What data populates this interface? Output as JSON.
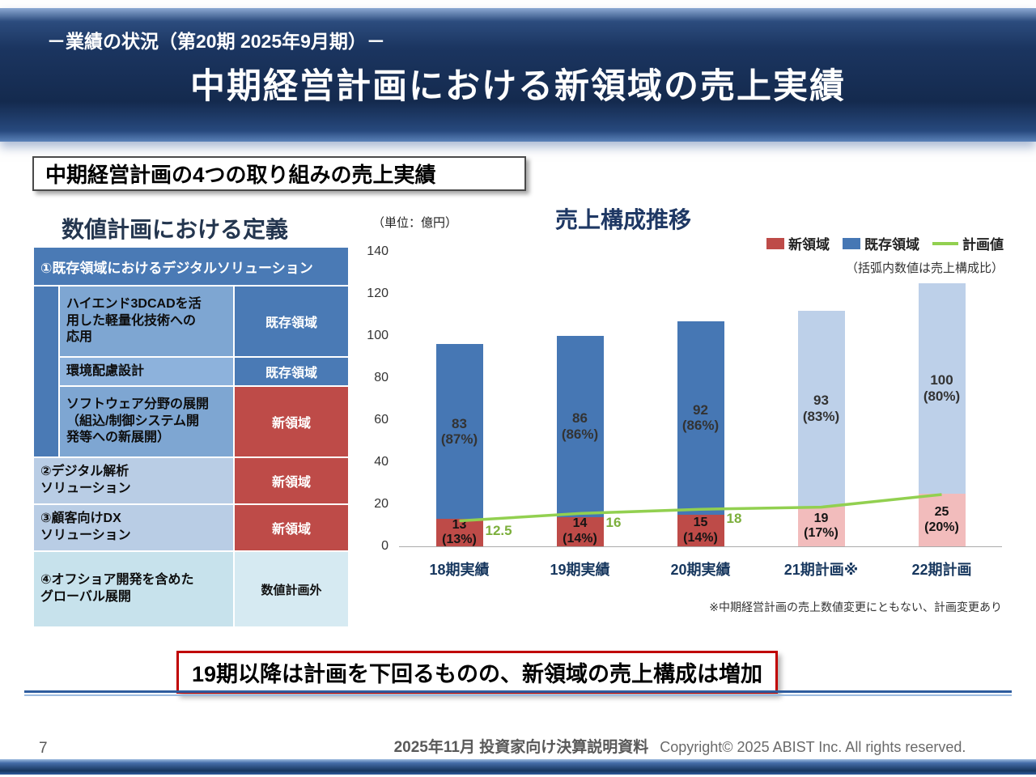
{
  "header": {
    "subtitle": "－業績の状況（第20期 2025年9月期）－",
    "title": "中期経営計画における新領域の売上実績"
  },
  "section_box": {
    "label": "中期経営計画の4つの取り組みの売上実績"
  },
  "definition": {
    "heading": "数値計画における定義",
    "header_row": "①既存領域におけるデジタルソリューション",
    "sub_rows": [
      {
        "text": "ハイエンド3DCADを活\n用した軽量化技術への\n応用",
        "tag": "既存領域"
      },
      {
        "text": "環境配慮設計",
        "tag": "既存領域"
      },
      {
        "text": "ソフトウェア分野の展開\n（組込/制御システム開\n発等への新展開）",
        "tag": "新領域"
      }
    ],
    "rows": [
      {
        "text": "②デジタル解析\nソリューション",
        "tag": "新領域"
      },
      {
        "text": "③顧客向けDX\nソリューション",
        "tag": "新領域"
      },
      {
        "text": "④オフショア開発を含めた\nグローバル展開",
        "tag": "数値計画外"
      }
    ]
  },
  "chart_data": {
    "type": "bar",
    "stacked": true,
    "title": "売上構成推移",
    "unit_label": "（単位：億円）",
    "note": "（括弧内数値は売上構成比）",
    "footnote": "※中期経営計画の売上数値変更にともない、計画変更あり",
    "categories": [
      "18期実績",
      "19期実績",
      "20期実績",
      "21期計画※",
      "22期計画"
    ],
    "is_plan": [
      false,
      false,
      false,
      true,
      true
    ],
    "series": [
      {
        "name": "新領域",
        "type": "bar",
        "values": [
          13,
          14,
          15,
          19,
          25
        ]
      },
      {
        "name": "既存領域",
        "type": "bar",
        "values": [
          83,
          86,
          92,
          93,
          100
        ]
      },
      {
        "name": "計画値",
        "type": "line",
        "values": [
          12.5,
          16,
          18,
          19,
          25
        ]
      }
    ],
    "bar_labels": {
      "new": [
        "13",
        "14",
        "15",
        "19",
        "25"
      ],
      "new_pct": [
        "(13%)",
        "(14%)",
        "(14%)",
        "(17%)",
        "(20%)"
      ],
      "existing": [
        "83",
        "86",
        "92",
        "93",
        "100"
      ],
      "existing_pct": [
        "(87%)",
        "(86%)",
        "(86%)",
        "(83%)",
        "(80%)"
      ]
    },
    "line_labels": [
      "12.5",
      "16",
      "18",
      "",
      ""
    ],
    "ylim": [
      0,
      140
    ],
    "yticks": [
      0,
      20,
      40,
      60,
      80,
      100,
      120,
      140
    ],
    "legend_position": "top-right",
    "grid": false,
    "colors": {
      "new": "#BE4B48",
      "existing": "#4677B4",
      "new_plan": "#F2BCBC",
      "existing_plan": "#BDD0E9",
      "line": "#92D050",
      "line_label": "#7CAF3C"
    }
  },
  "message": {
    "text": "19期以降は計画を下回るものの、新領域の売上構成は増加"
  },
  "footer": {
    "page": "7",
    "doc_label": "2025年11月 投資家向け決算説明資料",
    "copyright": "Copyright© 2025 ABIST Inc. All rights reserved."
  },
  "colors": {
    "banner_navy": "#17325E",
    "table_blue": "#4A7AB5",
    "table_blue_mid": "#7EA6D2",
    "table_blue_light": "#B9CDE5",
    "table_cyan": "#C7E2EC",
    "tag_red": "#BE4B48",
    "message_border": "#C00000"
  }
}
